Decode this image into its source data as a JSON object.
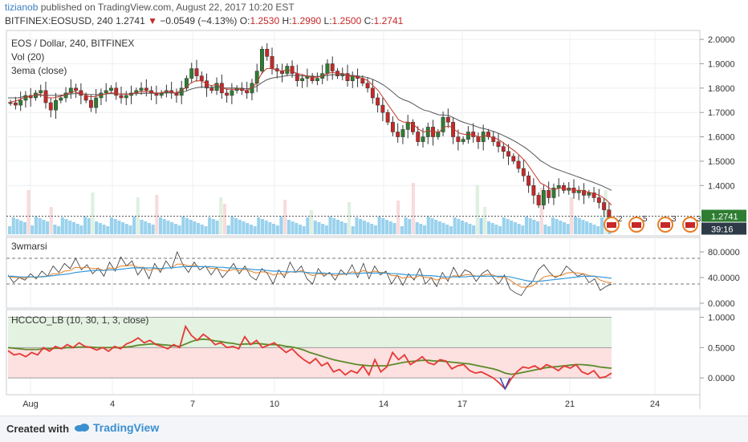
{
  "header": {
    "user": "tizianob",
    "published": "published on TradingView.com, August 22, 2017 10:20 EST",
    "symbol": "BITFINEX:EOSUSD, 240",
    "last": "1.2741",
    "change": "−0.0549 (−4.13%)",
    "o_label": "O:",
    "o": "1.2530",
    "h_label": "H:",
    "h": "1.2990",
    "l_label": "L:",
    "l": "1.2500",
    "c_label": "C:",
    "c": "1.2741"
  },
  "footer": {
    "created": "Created with",
    "brand": "TradingView"
  },
  "chart_data": [
    {
      "type": "candlestick",
      "title": "EOS / Dollar, 240, BITFINEX",
      "indicators": [
        "Vol (20)",
        "3ema (close)"
      ],
      "y_ticks": [
        "2.0000",
        "1.9000",
        "1.8000",
        "1.7000",
        "1.6000",
        "1.5000",
        "1.4000"
      ],
      "ylim": [
        1.2,
        2.03
      ],
      "last_price": "1.2741",
      "countdown": "39:16",
      "x_ticks": [
        "Aug",
        "4",
        "7",
        "10",
        "14",
        "17",
        "21",
        "24"
      ],
      "close": [
        1.74,
        1.73,
        1.75,
        1.77,
        1.76,
        1.78,
        1.79,
        1.74,
        1.71,
        1.75,
        1.76,
        1.78,
        1.8,
        1.79,
        1.77,
        1.75,
        1.72,
        1.76,
        1.78,
        1.79,
        1.8,
        1.77,
        1.76,
        1.77,
        1.78,
        1.79,
        1.8,
        1.79,
        1.78,
        1.77,
        1.78,
        1.79,
        1.78,
        1.77,
        1.8,
        1.84,
        1.88,
        1.85,
        1.83,
        1.8,
        1.79,
        1.82,
        1.78,
        1.77,
        1.79,
        1.8,
        1.79,
        1.78,
        1.82,
        1.87,
        1.96,
        1.93,
        1.88,
        1.87,
        1.86,
        1.89,
        1.86,
        1.83,
        1.84,
        1.85,
        1.83,
        1.84,
        1.86,
        1.9,
        1.87,
        1.85,
        1.86,
        1.83,
        1.85,
        1.84,
        1.82,
        1.8,
        1.76,
        1.73,
        1.7,
        1.66,
        1.62,
        1.6,
        1.63,
        1.66,
        1.62,
        1.58,
        1.6,
        1.64,
        1.6,
        1.62,
        1.68,
        1.66,
        1.6,
        1.58,
        1.59,
        1.62,
        1.6,
        1.58,
        1.62,
        1.6,
        1.58,
        1.56,
        1.54,
        1.52,
        1.5,
        1.47,
        1.44,
        1.4,
        1.36,
        1.32,
        1.38,
        1.35,
        1.39,
        1.4,
        1.38,
        1.39,
        1.37,
        1.38,
        1.36,
        1.37,
        1.35,
        1.33,
        1.3,
        1.27
      ],
      "volume_bars": 160,
      "ema_fast": [
        1.74,
        1.745,
        1.75,
        1.76,
        1.765,
        1.77,
        1.775,
        1.77,
        1.76,
        1.76,
        1.765,
        1.77,
        1.78,
        1.785,
        1.78,
        1.775,
        1.765,
        1.765,
        1.77,
        1.775,
        1.78,
        1.78,
        1.775,
        1.775,
        1.775,
        1.78,
        1.785,
        1.785,
        1.785,
        1.78,
        1.78,
        1.785,
        1.785,
        1.78,
        1.79,
        1.8,
        1.82,
        1.83,
        1.83,
        1.82,
        1.81,
        1.815,
        1.805,
        1.795,
        1.795,
        1.795,
        1.795,
        1.79,
        1.8,
        1.82,
        1.86,
        1.88,
        1.88,
        1.875,
        1.87,
        1.875,
        1.87,
        1.86,
        1.855,
        1.85,
        1.845,
        1.845,
        1.85,
        1.86,
        1.865,
        1.86,
        1.86,
        1.85,
        1.85,
        1.845,
        1.84,
        1.83,
        1.81,
        1.79,
        1.76,
        1.73,
        1.7,
        1.67,
        1.66,
        1.66,
        1.65,
        1.63,
        1.62,
        1.625,
        1.62,
        1.62,
        1.64,
        1.645,
        1.63,
        1.615,
        1.61,
        1.61,
        1.605,
        1.6,
        1.605,
        1.6,
        1.595,
        1.585,
        1.57,
        1.555,
        1.54,
        1.52,
        1.5,
        1.47,
        1.44,
        1.41,
        1.4,
        1.385,
        1.385,
        1.39,
        1.385,
        1.385,
        1.38,
        1.38,
        1.375,
        1.37,
        1.365,
        1.355,
        1.34,
        1.32
      ],
      "ema_slow": [
        1.76,
        1.76,
        1.76,
        1.765,
        1.765,
        1.77,
        1.77,
        1.77,
        1.77,
        1.77,
        1.77,
        1.772,
        1.775,
        1.777,
        1.777,
        1.776,
        1.774,
        1.773,
        1.774,
        1.775,
        1.777,
        1.777,
        1.776,
        1.776,
        1.776,
        1.777,
        1.778,
        1.779,
        1.779,
        1.779,
        1.779,
        1.78,
        1.78,
        1.78,
        1.782,
        1.787,
        1.795,
        1.801,
        1.804,
        1.804,
        1.803,
        1.805,
        1.802,
        1.8,
        1.8,
        1.8,
        1.799,
        1.797,
        1.8,
        1.807,
        1.822,
        1.834,
        1.841,
        1.845,
        1.847,
        1.852,
        1.853,
        1.851,
        1.85,
        1.85,
        1.848,
        1.848,
        1.849,
        1.853,
        1.855,
        1.855,
        1.855,
        1.852,
        1.852,
        1.85,
        1.847,
        1.843,
        1.835,
        1.825,
        1.813,
        1.798,
        1.781,
        1.763,
        1.752,
        1.745,
        1.734,
        1.72,
        1.71,
        1.705,
        1.697,
        1.69,
        1.689,
        1.686,
        1.677,
        1.666,
        1.658,
        1.652,
        1.645,
        1.637,
        1.633,
        1.627,
        1.62,
        1.612,
        1.602,
        1.592,
        1.581,
        1.568,
        1.555,
        1.539,
        1.521,
        1.502,
        1.49,
        1.477,
        1.468,
        1.461,
        1.453,
        1.446,
        1.438,
        1.431,
        1.423,
        1.416,
        1.408,
        1.4,
        1.39,
        1.38
      ]
    },
    {
      "type": "line",
      "title": "3wmarsi",
      "y_ticks": [
        "80.0000",
        "40.0000",
        "0.0000"
      ],
      "ylim": [
        -5,
        100
      ],
      "levels": [
        70,
        30
      ],
      "rsi": [
        44,
        32,
        40,
        36,
        46,
        38,
        50,
        42,
        58,
        48,
        62,
        54,
        70,
        52,
        60,
        46,
        55,
        42,
        64,
        50,
        72,
        58,
        66,
        44,
        56,
        38,
        62,
        48,
        66,
        54,
        80,
        60,
        48,
        64,
        52,
        58,
        44,
        56,
        40,
        50,
        62,
        46,
        58,
        42,
        36,
        54,
        46,
        30,
        52,
        40,
        64,
        48,
        58,
        38,
        30,
        54,
        42,
        48,
        36,
        52,
        44,
        60,
        40,
        62,
        38,
        58,
        44,
        50,
        30,
        44,
        28,
        46,
        36,
        54,
        30,
        40,
        26,
        48,
        34,
        56,
        40,
        52,
        48,
        34,
        46,
        52,
        40,
        30,
        44,
        22,
        16,
        12,
        26,
        34,
        52,
        60,
        48,
        40,
        44,
        58,
        50,
        42,
        46,
        32,
        38,
        20,
        26,
        30
      ],
      "rsi_ma1": [
        42,
        40,
        40,
        39,
        41,
        40,
        42,
        42,
        46,
        46,
        50,
        51,
        56,
        55,
        56,
        54,
        54,
        51,
        55,
        54,
        58,
        58,
        60,
        56,
        56,
        51,
        54,
        52,
        55,
        55,
        61,
        61,
        58,
        59,
        57,
        57,
        54,
        54,
        51,
        50,
        53,
        51,
        53,
        50,
        47,
        49,
        48,
        44,
        46,
        45,
        49,
        48,
        51,
        47,
        43,
        46,
        45,
        46,
        43,
        45,
        45,
        49,
        47,
        51,
        48,
        50,
        48,
        48,
        43,
        43,
        39,
        41,
        39,
        43,
        40,
        40,
        36,
        39,
        38,
        43,
        42,
        44,
        45,
        42,
        43,
        45,
        44,
        40,
        41,
        36,
        30,
        25,
        25,
        27,
        34,
        41,
        43,
        42,
        43,
        47,
        48,
        47,
        46,
        43,
        42,
        36,
        33,
        32
      ],
      "rsi_ma2": [
        42,
        42,
        41,
        41,
        41,
        41,
        41,
        42,
        43,
        44,
        45,
        46,
        48,
        49,
        50,
        51,
        51,
        51,
        52,
        52,
        53,
        54,
        55,
        55,
        55,
        55,
        55,
        54,
        55,
        55,
        56,
        57,
        57,
        57,
        57,
        57,
        57,
        56,
        56,
        55,
        55,
        54,
        54,
        53,
        52,
        52,
        51,
        50,
        50,
        49,
        49,
        49,
        49,
        48,
        47,
        47,
        47,
        46,
        46,
        46,
        46,
        46,
        46,
        47,
        47,
        47,
        47,
        47,
        46,
        46,
        45,
        44,
        44,
        44,
        43,
        43,
        42,
        41,
        41,
        41,
        41,
        41,
        42,
        42,
        42,
        42,
        42,
        42,
        42,
        41,
        39,
        37,
        35,
        34,
        34,
        35,
        36,
        37,
        38,
        39,
        40,
        41,
        42,
        42,
        42,
        41,
        40,
        39
      ]
    },
    {
      "type": "line",
      "title": "HCCCO_LB (10, 30, 1, 3, close)",
      "y_ticks": [
        "1.0000",
        "0.5000",
        "0.0000"
      ],
      "ylim": [
        -0.25,
        1.1
      ],
      "bands": [
        [
          0.5,
          1.0,
          "bull"
        ],
        [
          0.0,
          0.5,
          "bear"
        ]
      ],
      "fast": [
        0.45,
        0.38,
        0.4,
        0.35,
        0.42,
        0.38,
        0.5,
        0.44,
        0.52,
        0.48,
        0.55,
        0.5,
        0.58,
        0.52,
        0.5,
        0.46,
        0.5,
        0.44,
        0.52,
        0.48,
        0.56,
        0.6,
        0.66,
        0.58,
        0.62,
        0.55,
        0.52,
        0.48,
        0.55,
        0.5,
        0.85,
        0.7,
        0.62,
        0.72,
        0.65,
        0.55,
        0.58,
        0.5,
        0.52,
        0.48,
        0.68,
        0.55,
        0.62,
        0.5,
        0.54,
        0.58,
        0.5,
        0.42,
        0.48,
        0.38,
        0.3,
        0.24,
        0.32,
        0.2,
        0.25,
        0.1,
        0.14,
        0.05,
        0.12,
        0.08,
        0.2,
        0.05,
        0.3,
        0.1,
        0.18,
        0.42,
        0.3,
        0.38,
        0.22,
        0.28,
        0.35,
        0.25,
        0.22,
        0.3,
        0.28,
        0.15,
        0.2,
        0.22,
        0.12,
        0.08,
        0.1,
        0.05,
        0.0,
        -0.08,
        -0.18,
        -0.02,
        0.1,
        0.18,
        0.16,
        0.2,
        0.14,
        0.22,
        0.18,
        0.12,
        0.2,
        0.16,
        0.22,
        0.1,
        0.06,
        0.12,
        0.0,
        0.02,
        0.08
      ],
      "slow": [
        0.5,
        0.49,
        0.48,
        0.47,
        0.47,
        0.47,
        0.48,
        0.48,
        0.49,
        0.49,
        0.5,
        0.5,
        0.51,
        0.51,
        0.51,
        0.5,
        0.5,
        0.5,
        0.5,
        0.5,
        0.51,
        0.52,
        0.54,
        0.55,
        0.56,
        0.56,
        0.55,
        0.54,
        0.53,
        0.52,
        0.56,
        0.6,
        0.63,
        0.64,
        0.63,
        0.61,
        0.6,
        0.58,
        0.57,
        0.55,
        0.56,
        0.56,
        0.57,
        0.56,
        0.55,
        0.55,
        0.54,
        0.52,
        0.51,
        0.49,
        0.46,
        0.42,
        0.39,
        0.36,
        0.33,
        0.3,
        0.28,
        0.26,
        0.24,
        0.22,
        0.21,
        0.2,
        0.2,
        0.2,
        0.2,
        0.22,
        0.24,
        0.26,
        0.27,
        0.28,
        0.29,
        0.29,
        0.28,
        0.28,
        0.27,
        0.26,
        0.25,
        0.24,
        0.23,
        0.21,
        0.19,
        0.17,
        0.15,
        0.12,
        0.08,
        0.06,
        0.07,
        0.09,
        0.11,
        0.13,
        0.15,
        0.17,
        0.18,
        0.19,
        0.2,
        0.21,
        0.22,
        0.22,
        0.21,
        0.2,
        0.18,
        0.17,
        0.16
      ]
    }
  ],
  "markers": {
    "flag_counts": [
      "2",
      "5",
      "3",
      "3"
    ],
    "badge_counts": [],
    "colors": {
      "up": "#2e7d32",
      "down": "#c62828",
      "ema_fast": "#c0392b",
      "ema_slow": "#555555",
      "volume": "#81c7e8",
      "rsi": "#333333",
      "ma1": "#e67e22",
      "ma2": "#3498db",
      "hc_fast": "#e53935",
      "hc_slow": "#5b8c2a"
    }
  }
}
